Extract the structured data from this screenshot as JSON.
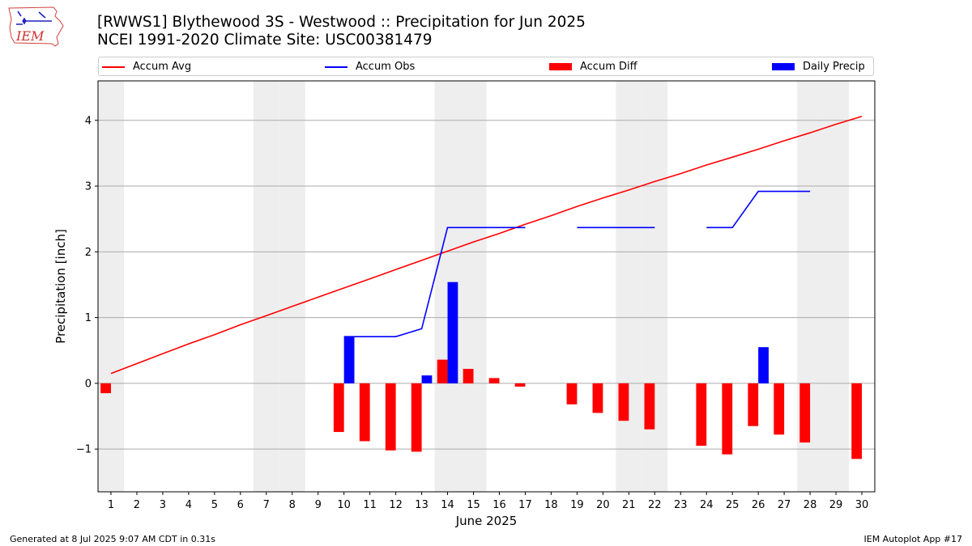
{
  "header": {
    "title_line1": "[RWWS1] Blythewood 3S - Westwood :: Precipitation for Jun 2025",
    "title_line2": "NCEI 1991-2020 Climate Site: USC00381479",
    "logo_text": "IEM"
  },
  "legend": {
    "accum_avg": "Accum Avg",
    "accum_obs": "Accum Obs",
    "accum_diff": "Accum Diff",
    "daily_precip": "Daily Precip"
  },
  "footer": {
    "generated": "Generated at 8 Jul 2025 9:07 AM CDT in 0.31s",
    "app": "IEM Autoplot App #17"
  },
  "colors": {
    "accum_avg": "#ff0000",
    "accum_obs": "#0000ff",
    "accum_diff": "#ff0000",
    "daily_precip": "#0000ff",
    "weekend_shade": "#eeeeee",
    "grid": "#aaaaaa"
  },
  "chart_data": {
    "type": "bar",
    "xlabel": "June 2025",
    "ylabel": "Precipitation [inch]",
    "x": [
      1,
      2,
      3,
      4,
      5,
      6,
      7,
      8,
      9,
      10,
      11,
      12,
      13,
      14,
      15,
      16,
      17,
      18,
      19,
      20,
      21,
      22,
      23,
      24,
      25,
      26,
      27,
      28,
      29,
      30
    ],
    "xlim": [
      0.5,
      30.5
    ],
    "ylim": [
      -1.65,
      4.6
    ],
    "yticks": [
      -1,
      0,
      1,
      2,
      3,
      4
    ],
    "ytick_labels": [
      "−1",
      "0",
      "1",
      "2",
      "3",
      "4"
    ],
    "grid": "horizontal",
    "legend_position": "top",
    "weekend_shading_days": [
      1,
      7,
      8,
      14,
      15,
      21,
      22,
      28,
      29
    ],
    "series": [
      {
        "name": "Accum Avg",
        "type": "line",
        "values": [
          0.15,
          0.3,
          0.45,
          0.6,
          0.74,
          0.89,
          1.03,
          1.17,
          1.31,
          1.45,
          1.59,
          1.73,
          1.87,
          2.01,
          2.15,
          2.28,
          2.42,
          2.55,
          2.69,
          2.82,
          2.94,
          3.07,
          3.19,
          3.32,
          3.44,
          3.56,
          3.69,
          3.81,
          3.94,
          4.06
        ]
      },
      {
        "name": "Accum Obs",
        "type": "line",
        "values": [
          null,
          null,
          null,
          null,
          null,
          null,
          null,
          null,
          null,
          0.71,
          0.71,
          0.71,
          0.83,
          2.37,
          2.37,
          2.37,
          2.37,
          null,
          2.37,
          2.37,
          2.37,
          2.37,
          null,
          2.37,
          2.37,
          2.92,
          2.92,
          2.92,
          null,
          null
        ]
      },
      {
        "name": "Accum Diff",
        "type": "bar",
        "values": [
          -0.15,
          null,
          null,
          null,
          null,
          null,
          null,
          null,
          null,
          -0.74,
          -0.88,
          -1.02,
          -1.04,
          0.36,
          0.22,
          0.08,
          -0.05,
          null,
          -0.32,
          -0.45,
          -0.57,
          -0.7,
          null,
          -0.95,
          -1.08,
          -0.65,
          -0.78,
          -0.9,
          null,
          -1.15
        ]
      },
      {
        "name": "Daily Precip",
        "type": "bar",
        "values": [
          0,
          0,
          0,
          0,
          0,
          0,
          0,
          0,
          0,
          0.71,
          0,
          0,
          0.12,
          1.54,
          0,
          0,
          0,
          0,
          0,
          0,
          0,
          0,
          0,
          0,
          0,
          0.55,
          0,
          0,
          0,
          0
        ]
      }
    ]
  }
}
